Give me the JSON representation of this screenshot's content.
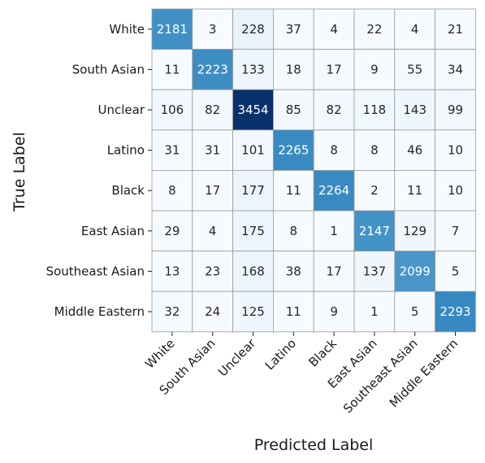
{
  "chart_data": {
    "type": "heatmap",
    "title": "",
    "xlabel": "Predicted Label",
    "ylabel": "True Label",
    "x_categories": [
      "White",
      "South Asian",
      "Unclear",
      "Latino",
      "Black",
      "East Asian",
      "Southeast Asian",
      "Middle Eastern"
    ],
    "y_categories": [
      "White",
      "South Asian",
      "Unclear",
      "Latino",
      "Black",
      "East Asian",
      "Southeast Asian",
      "Middle Eastern"
    ],
    "values": [
      [
        2181,
        3,
        228,
        37,
        4,
        22,
        4,
        21
      ],
      [
        11,
        2223,
        133,
        18,
        17,
        9,
        55,
        34
      ],
      [
        106,
        82,
        3454,
        85,
        82,
        118,
        143,
        99
      ],
      [
        31,
        31,
        101,
        2265,
        8,
        8,
        46,
        10
      ],
      [
        8,
        17,
        177,
        11,
        2264,
        2,
        11,
        10
      ],
      [
        29,
        4,
        175,
        8,
        1,
        2147,
        129,
        7
      ],
      [
        13,
        23,
        168,
        38,
        17,
        137,
        2099,
        5
      ],
      [
        32,
        24,
        125,
        11,
        9,
        1,
        5,
        2293
      ]
    ],
    "colormap": "Blues",
    "vmin": 1,
    "vmax": 3454,
    "colorbar": false,
    "grid": true,
    "cell_border_color": "#999999"
  }
}
